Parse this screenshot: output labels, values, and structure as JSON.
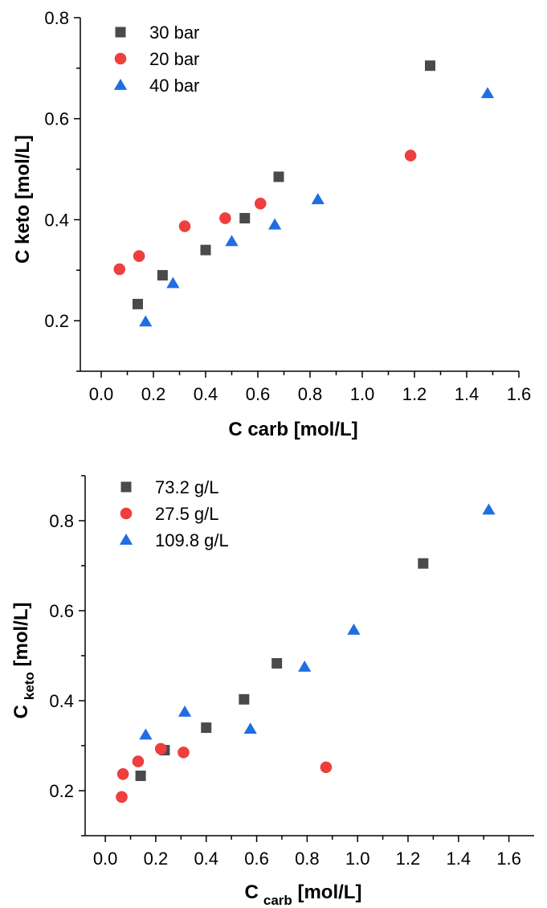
{
  "chart_data": [
    {
      "type": "scatter",
      "title": "",
      "xlabel": "C carb [mol/L]",
      "ylabel": "C keto [mol/L]",
      "xlim": [
        -0.08,
        1.6
      ],
      "ylim": [
        0.1,
        0.8
      ],
      "x_ticks": [
        "0.0",
        "0.2",
        "0.4",
        "0.6",
        "0.8",
        "1.0",
        "1.2",
        "1.4",
        "1.6"
      ],
      "y_ticks": [
        "0.2",
        "0.4",
        "0.6",
        "0.8"
      ],
      "grid": false,
      "legend_position": "top-left",
      "series": [
        {
          "name": "30 bar",
          "marker": "square",
          "color": "#4a4a4a",
          "points": [
            [
              0.14,
              0.233
            ],
            [
              0.235,
              0.29
            ],
            [
              0.4,
              0.34
            ],
            [
              0.55,
              0.403
            ],
            [
              0.68,
              0.485
            ],
            [
              1.26,
              0.705
            ]
          ]
        },
        {
          "name": "20 bar",
          "marker": "circle",
          "color": "#ef3e3e",
          "points": [
            [
              0.07,
              0.302
            ],
            [
              0.145,
              0.328
            ],
            [
              0.32,
              0.387
            ],
            [
              0.475,
              0.403
            ],
            [
              0.61,
              0.432
            ],
            [
              1.185,
              0.527
            ]
          ]
        },
        {
          "name": "40 bar",
          "marker": "triangle",
          "color": "#1f6fe0",
          "points": [
            [
              0.17,
              0.198
            ],
            [
              0.275,
              0.274
            ],
            [
              0.5,
              0.357
            ],
            [
              0.665,
              0.39
            ],
            [
              0.83,
              0.44
            ],
            [
              1.48,
              0.65
            ]
          ]
        }
      ]
    },
    {
      "type": "scatter",
      "title": "",
      "xlabel": "C",
      "xlabel_sub": "carb",
      "xlabel_suffix": " [mol/L]",
      "ylabel": "C",
      "ylabel_sub": "keto",
      "ylabel_suffix": " [mol/L]",
      "xlim": [
        -0.08,
        1.7
      ],
      "ylim": [
        0.1,
        0.9
      ],
      "x_ticks": [
        "0.0",
        "0.2",
        "0.4",
        "0.6",
        "0.8",
        "1.0",
        "1.2",
        "1.4",
        "1.6"
      ],
      "y_ticks": [
        "0.2",
        "0.4",
        "0.6",
        "0.8"
      ],
      "grid": false,
      "legend_position": "top-left",
      "series": [
        {
          "name": "73.2 g/L",
          "marker": "square",
          "color": "#4a4a4a",
          "points": [
            [
              0.14,
              0.233
            ],
            [
              0.235,
              0.29
            ],
            [
              0.4,
              0.34
            ],
            [
              0.55,
              0.403
            ],
            [
              0.68,
              0.483
            ],
            [
              1.26,
              0.705
            ]
          ]
        },
        {
          "name": "27.5 g/L",
          "marker": "circle",
          "color": "#ef3e3e",
          "points": [
            [
              0.065,
              0.186
            ],
            [
              0.07,
              0.237
            ],
            [
              0.13,
              0.265
            ],
            [
              0.22,
              0.293
            ],
            [
              0.31,
              0.285
            ],
            [
              0.875,
              0.252
            ]
          ]
        },
        {
          "name": "109.8 g/L",
          "marker": "triangle",
          "color": "#1f6fe0",
          "points": [
            [
              0.16,
              0.324
            ],
            [
              0.315,
              0.375
            ],
            [
              0.575,
              0.337
            ],
            [
              0.79,
              0.475
            ],
            [
              0.985,
              0.557
            ],
            [
              1.52,
              0.824
            ]
          ]
        }
      ]
    }
  ]
}
